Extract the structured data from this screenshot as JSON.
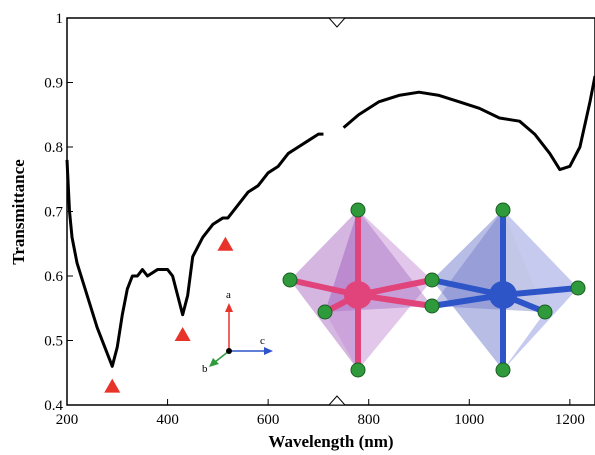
{
  "chart_data": {
    "type": "line",
    "xlabel": "Wavelength (nm)",
    "ylabel": "Transmittance",
    "xlim": [
      200,
      1250
    ],
    "ylim": [
      0.4,
      1
    ],
    "xticks": [
      200,
      400,
      600,
      800,
      1000,
      1200
    ],
    "yticks": [
      0.4,
      0.5,
      0.6,
      0.7,
      0.8,
      0.9,
      1
    ],
    "x": [
      200,
      205,
      210,
      220,
      240,
      260,
      280,
      290,
      300,
      310,
      320,
      330,
      340,
      350,
      360,
      380,
      400,
      410,
      420,
      430,
      440,
      450,
      470,
      490,
      510,
      520,
      540,
      560,
      580,
      600,
      620,
      640,
      660,
      680,
      700,
      710,
      720,
      750,
      780,
      820,
      860,
      900,
      940,
      980,
      1020,
      1060,
      1100,
      1130,
      1160,
      1180,
      1200,
      1220,
      1240,
      1250
    ],
    "series": [
      {
        "color": "#000000",
        "values": [
          0.78,
          0.7,
          0.66,
          0.62,
          0.57,
          0.52,
          0.48,
          0.46,
          0.49,
          0.54,
          0.58,
          0.6,
          0.6,
          0.61,
          0.6,
          0.61,
          0.61,
          0.6,
          0.57,
          0.54,
          0.57,
          0.63,
          0.66,
          0.68,
          0.69,
          0.69,
          0.71,
          0.73,
          0.74,
          0.76,
          0.77,
          0.79,
          0.8,
          0.81,
          0.82,
          0.82,
          null,
          0.83,
          0.85,
          0.87,
          0.88,
          0.885,
          0.88,
          0.87,
          0.86,
          0.845,
          0.84,
          0.82,
          0.79,
          0.765,
          0.77,
          0.8,
          0.87,
          0.91
        ]
      }
    ],
    "markers": {
      "x": [
        290,
        430,
        515
      ],
      "y": [
        0.43,
        0.51,
        0.65
      ],
      "color": "#e8332a"
    },
    "annotations": [
      "a",
      "b",
      "c"
    ]
  }
}
